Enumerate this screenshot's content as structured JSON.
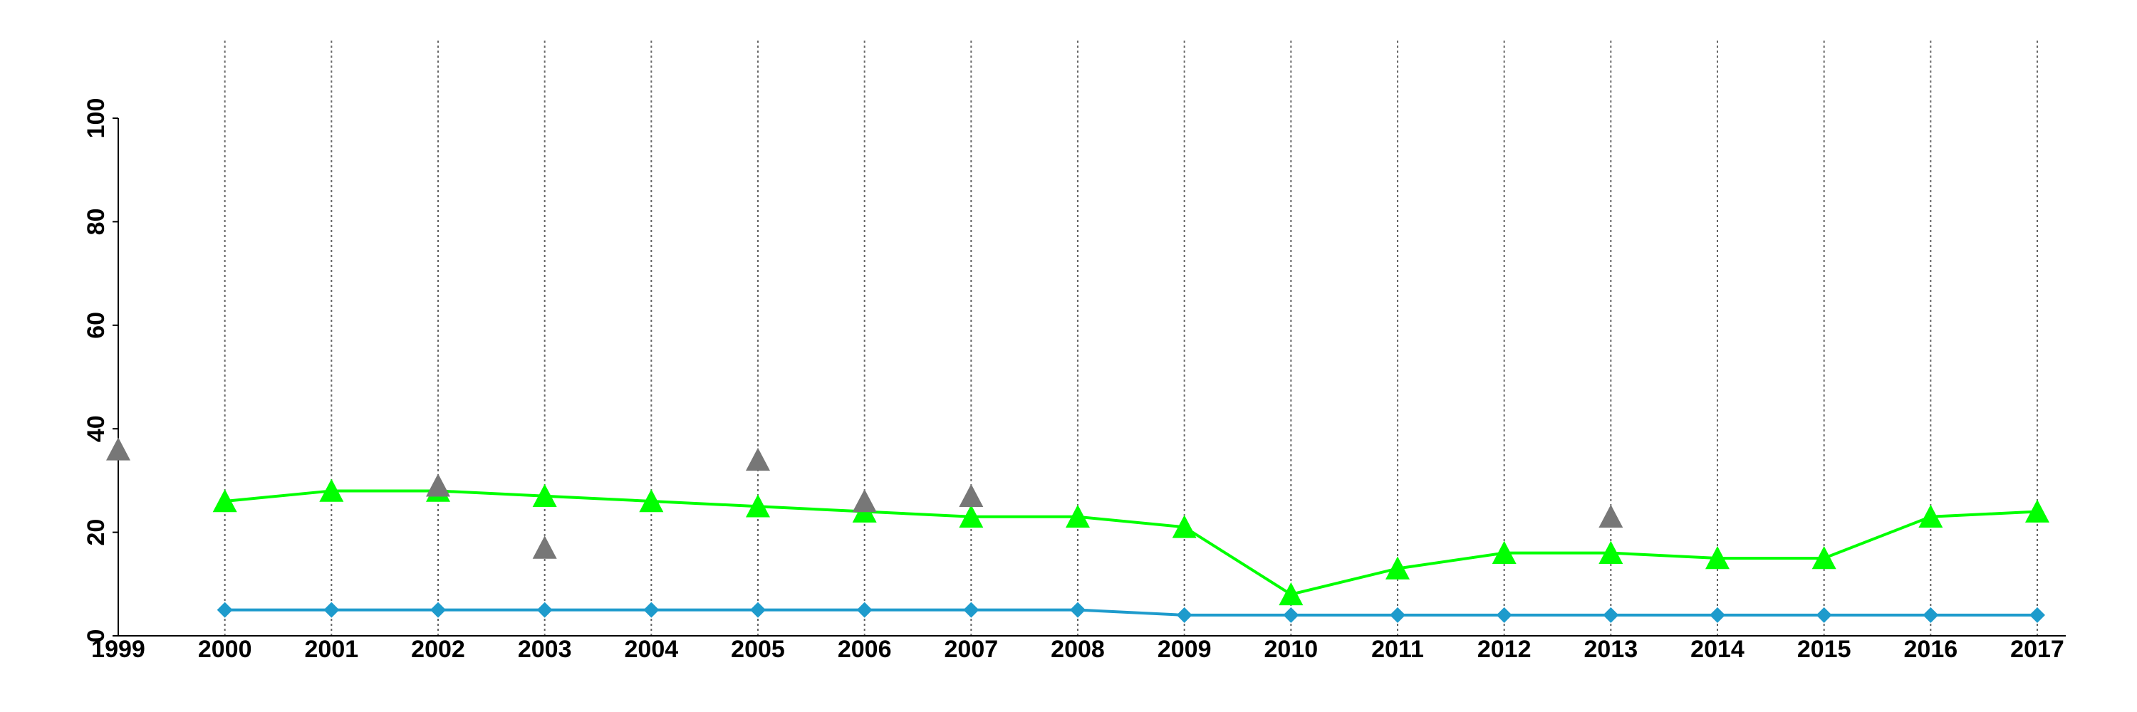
{
  "chart_data": {
    "type": "line",
    "x": [
      1999,
      2000,
      2001,
      2002,
      2003,
      2004,
      2005,
      2006,
      2007,
      2008,
      2009,
      2010,
      2011,
      2012,
      2013,
      2014,
      2015,
      2016,
      2017
    ],
    "series": [
      {
        "color": "#00ff00",
        "marker": "triangle",
        "line": true,
        "values": [
          null,
          26,
          28,
          28,
          27,
          26,
          25,
          24,
          23,
          23,
          21,
          8,
          13,
          16,
          16,
          15,
          15,
          23,
          24
        ]
      },
      {
        "color": "#1e9bcc",
        "marker": "diamond",
        "line": true,
        "values": [
          null,
          5,
          5,
          5,
          5,
          5,
          5,
          5,
          5,
          5,
          4,
          4,
          4,
          4,
          4,
          4,
          4,
          4,
          4
        ]
      },
      {
        "color": "#777777",
        "marker": "triangle",
        "line": false,
        "values": [
          36,
          null,
          null,
          29,
          17,
          null,
          34,
          26,
          27,
          null,
          null,
          null,
          null,
          null,
          23,
          null,
          null,
          null,
          null
        ]
      }
    ],
    "xlim": [
      1999,
      2017
    ],
    "xticks": [
      1999,
      2000,
      2001,
      2002,
      2003,
      2004,
      2005,
      2006,
      2007,
      2008,
      2009,
      2010,
      2011,
      2012,
      2013,
      2014,
      2015,
      2016,
      2017
    ],
    "ylim": [
      0,
      100
    ],
    "yticks": [
      0,
      20,
      40,
      60,
      80,
      100
    ],
    "xgrid": true
  }
}
